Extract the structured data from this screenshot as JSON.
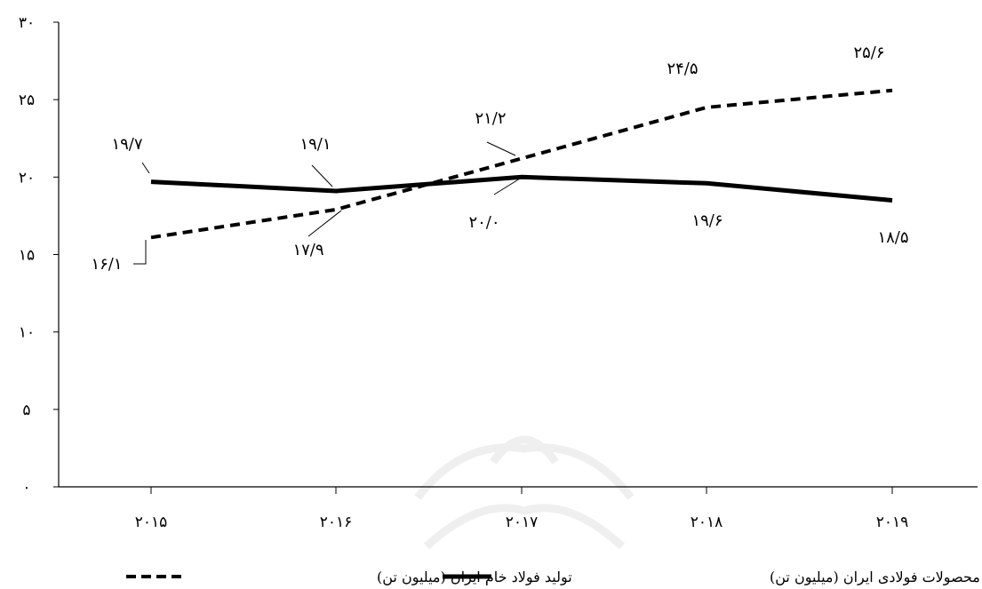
{
  "chart_data": {
    "type": "line",
    "title": "",
    "xlabel": "",
    "ylabel": "",
    "categories": [
      "۲۰۱۵",
      "۲۰۱۶",
      "۲۰۱۷",
      "۲۰۱۸",
      "۲۰۱۹"
    ],
    "x": [
      2015,
      2016,
      2017,
      2018,
      2019
    ],
    "ylim": [
      0,
      30
    ],
    "yticks": [
      0,
      5,
      10,
      15,
      20,
      25,
      30
    ],
    "ytick_labels": [
      "۰",
      "۵",
      "۱۰",
      "۱۵",
      "۲۰",
      "۲۵",
      "۳۰"
    ],
    "grid": false,
    "legend_position": "bottom",
    "series": [
      {
        "name": "مصرف  محصولات فولادی ایران (میلیون تن)",
        "style": "solid",
        "color": "#000000",
        "values": [
          19.7,
          19.1,
          20.0,
          19.6,
          18.5
        ],
        "labels": [
          "۱۹/۷",
          "۱۹/۱",
          "۲۰/۰",
          "۱۹/۶",
          "۱۸/۵"
        ]
      },
      {
        "name": "تولید فولاد خام ایران (میلیون تن)",
        "style": "dashed",
        "color": "#000000",
        "values": [
          16.1,
          17.9,
          21.2,
          24.5,
          25.6
        ],
        "labels": [
          "۱۶/۱",
          "۱۷/۹",
          "۲۱/۲",
          "۲۴/۵",
          "۲۵/۶"
        ]
      }
    ]
  }
}
